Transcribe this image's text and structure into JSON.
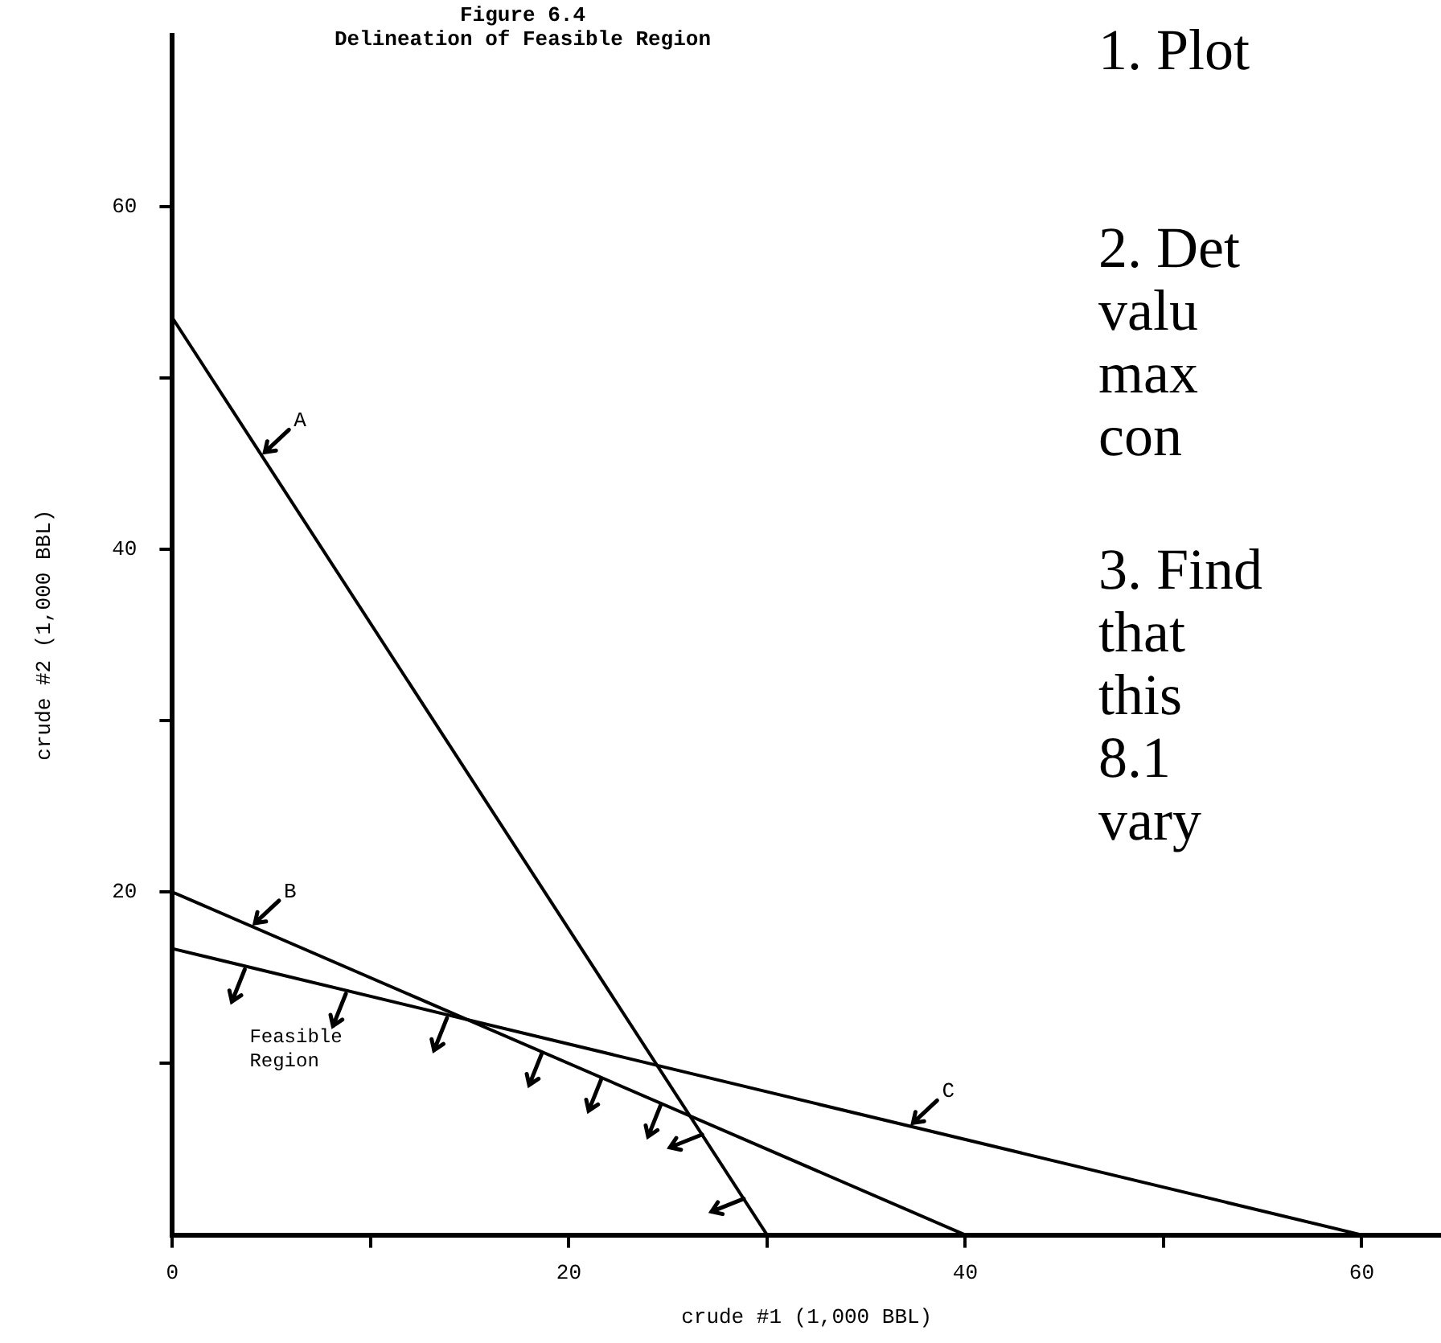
{
  "chart_data": {
    "type": "line",
    "title": "Figure 6.4",
    "subtitle": "Delineation of Feasible Region",
    "xlabel": "crude #1 (1,000 BBL)",
    "ylabel": "crude #2 (1,000 BBL)",
    "xlim": [
      0,
      64
    ],
    "ylim": [
      0,
      70
    ],
    "xticks": [
      0,
      {
        "value": 10,
        "label": null
      },
      20,
      {
        "value": 30,
        "label": null
      },
      40,
      {
        "value": 50,
        "label": null
      },
      60
    ],
    "yticks": [
      {
        "value": 10,
        "label": null
      },
      20,
      {
        "value": 30,
        "label": null
      },
      40,
      {
        "value": 50,
        "label": null
      },
      60
    ],
    "series": [
      {
        "name": "A",
        "color": "#000000",
        "x": [
          0,
          30
        ],
        "values": [
          53.5,
          0
        ]
      },
      {
        "name": "B",
        "color": "#000000",
        "x": [
          0,
          40
        ],
        "values": [
          20,
          0
        ]
      },
      {
        "name": "C",
        "color": "#000000",
        "x": [
          0,
          60
        ],
        "values": [
          16.7,
          0
        ]
      }
    ],
    "annotations": [
      "Feasible Region",
      "1. Plot",
      "2. Det\nvalu\nmax\ncon",
      "3. Find\nthat\nthis\n8.1\nvary"
    ],
    "grid": false,
    "legend": false,
    "marker": "none",
    "line_style": "solid"
  }
}
